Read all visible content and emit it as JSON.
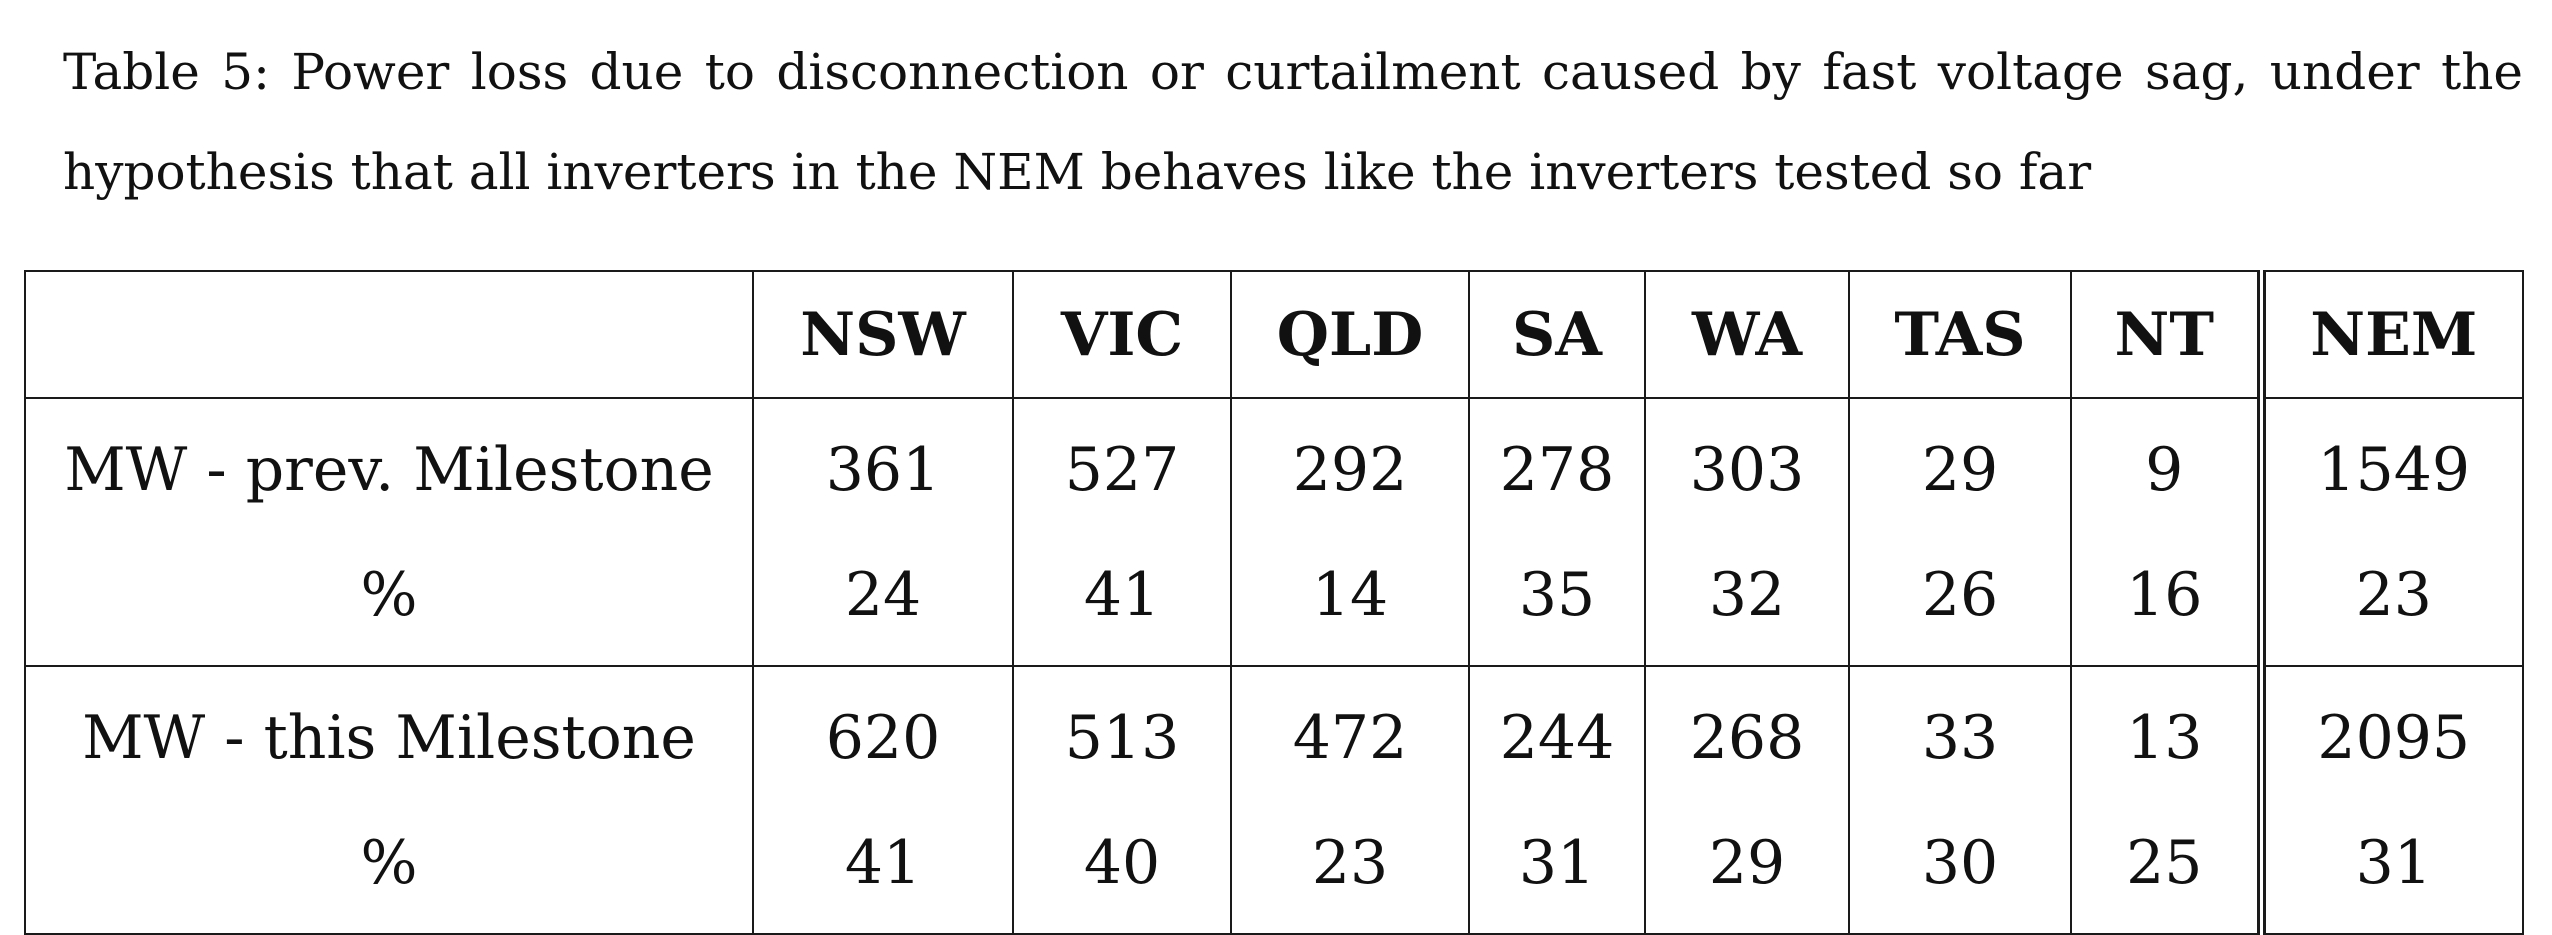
{
  "caption": "Table 5: Power loss due to disconnection or curtailment caused by fast voltage sag, under the hypothesis that all inverters in the NEM behaves like the inverters tested so far",
  "table": {
    "header": [
      "",
      "NSW",
      "VIC",
      "QLD",
      "SA",
      "WA",
      "TAS",
      "NT",
      "NEM"
    ],
    "rows": [
      {
        "label": "MW - prev. Milestone",
        "values": [
          "361",
          "527",
          "292",
          "278",
          "303",
          "29",
          "9",
          "1549"
        ]
      },
      {
        "label": "%",
        "values": [
          "24",
          "41",
          "14",
          "35",
          "32",
          "26",
          "16",
          "23"
        ]
      },
      {
        "label": "MW - this Milestone",
        "values": [
          "620",
          "513",
          "472",
          "244",
          "268",
          "33",
          "13",
          "2095"
        ]
      },
      {
        "label": "%",
        "values": [
          "41",
          "40",
          "23",
          "31",
          "29",
          "30",
          "25",
          "31"
        ]
      }
    ]
  }
}
